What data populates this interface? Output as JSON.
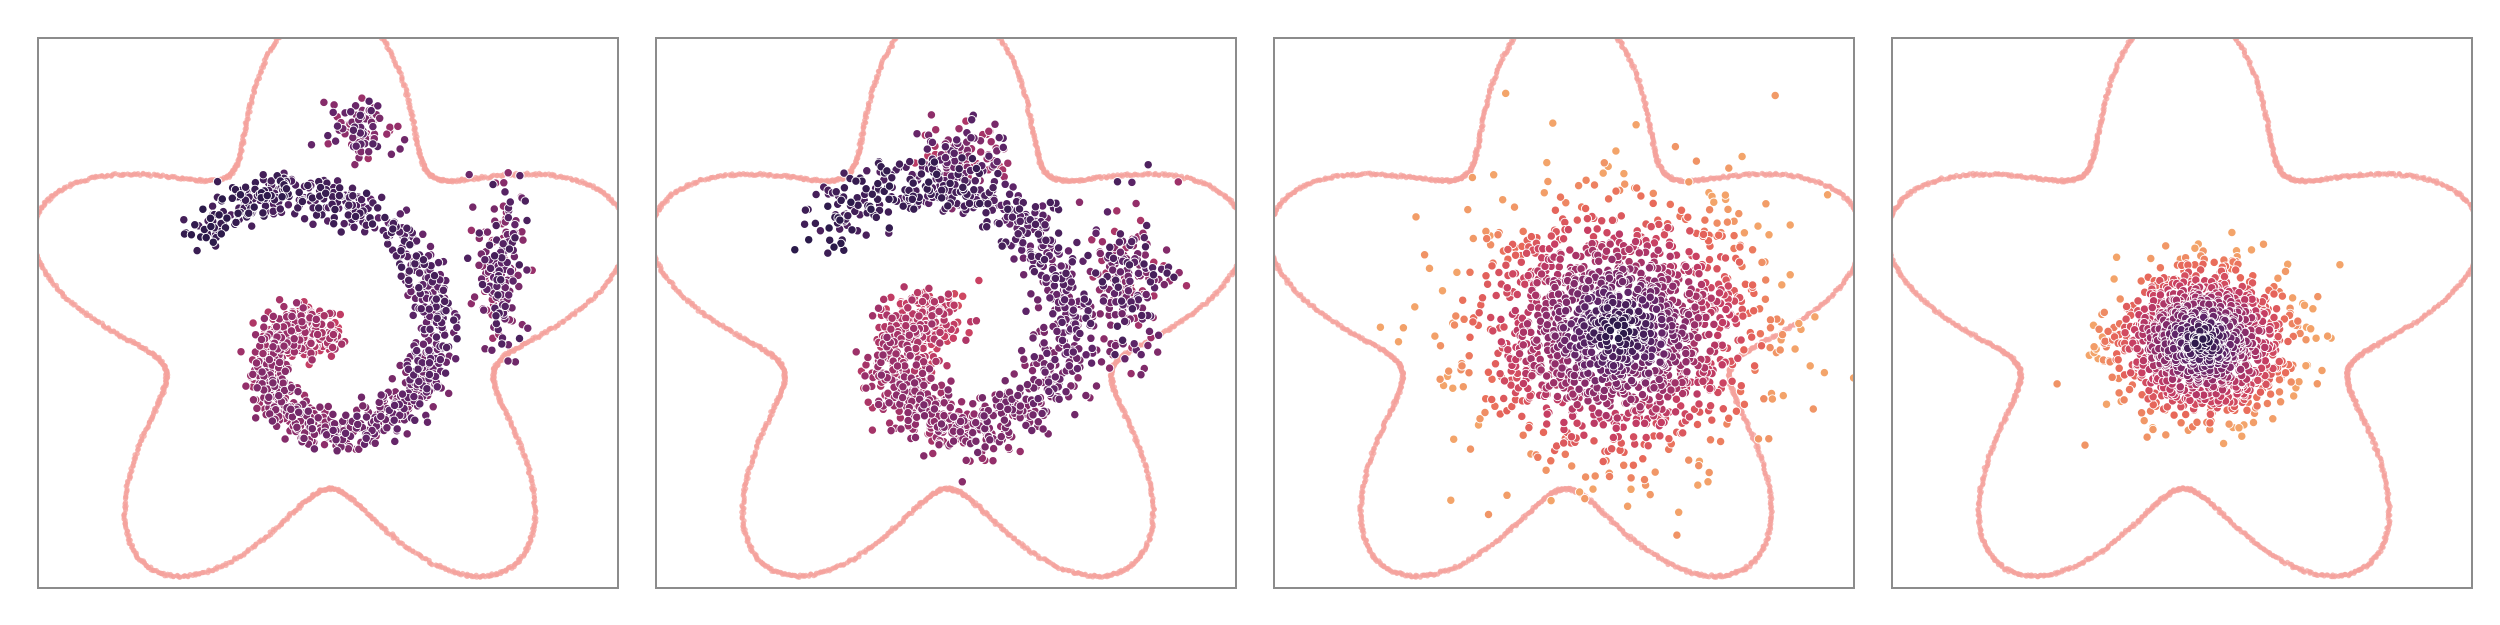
{
  "figure": {
    "panel_count": 4,
    "boundary_color": "#f4a29c",
    "palette": [
      "#f3a46a",
      "#e8685a",
      "#c73e63",
      "#962f6a",
      "#5f2569",
      "#2b1a4a"
    ],
    "dot_edge_color": "#ffffff"
  },
  "chart_data": [
    {
      "type": "scatter",
      "title": "",
      "xlabel": "",
      "ylabel": "",
      "xlim": [
        -4,
        4
      ],
      "ylim": [
        -4,
        4
      ],
      "grid": false,
      "boundary": {
        "shape": "five-petal star",
        "r0": 3.35,
        "amp": 0.95,
        "rotation_deg": 90
      },
      "clusters": [
        {
          "kind": "spiral",
          "center": [
            -0.15,
            -0.45
          ],
          "theta_range": [
            0.4,
            7.6
          ],
          "radius_range": [
            0.15,
            2.35
          ],
          "points": 1300,
          "spread": 0.15,
          "color_range": [
            0.45,
            0.95
          ]
        },
        {
          "kind": "blob",
          "center": [
            0.45,
            2.6
          ],
          "spread": [
            0.25,
            0.2
          ],
          "points": 90,
          "color_range": [
            0.55,
            0.85
          ]
        },
        {
          "kind": "blob",
          "center": [
            2.35,
            0.65
          ],
          "spread": [
            0.18,
            0.55
          ],
          "points": 180,
          "color_range": [
            0.55,
            0.9
          ]
        }
      ],
      "seed": 11
    },
    {
      "type": "scatter",
      "title": "",
      "xlabel": "",
      "ylabel": "",
      "xlim": [
        -4,
        4
      ],
      "ylim": [
        -4,
        4
      ],
      "grid": false,
      "boundary": {
        "shape": "five-petal star",
        "r0": 3.35,
        "amp": 0.95,
        "rotation_deg": 90
      },
      "clusters": [
        {
          "kind": "spiral",
          "center": [
            0.0,
            -0.35
          ],
          "theta_range": [
            0.9,
            7.6
          ],
          "radius_range": [
            0.3,
            2.4
          ],
          "points": 1300,
          "spread": 0.22,
          "color_range": [
            0.4,
            0.95
          ]
        },
        {
          "kind": "blob",
          "center": [
            0.2,
            2.25
          ],
          "spread": [
            0.32,
            0.25
          ],
          "points": 110,
          "color_range": [
            0.45,
            0.85
          ]
        },
        {
          "kind": "blob",
          "center": [
            2.5,
            0.4
          ],
          "spread": [
            0.28,
            0.55
          ],
          "points": 200,
          "color_range": [
            0.5,
            0.9
          ]
        }
      ],
      "seed": 23
    },
    {
      "type": "scatter",
      "title": "",
      "xlabel": "",
      "ylabel": "",
      "xlim": [
        -4,
        4
      ],
      "ylim": [
        -4,
        4
      ],
      "grid": false,
      "boundary": {
        "shape": "five-petal star",
        "r0": 3.35,
        "amp": 0.95,
        "rotation_deg": 90
      },
      "clusters": [
        {
          "kind": "gaussian",
          "center": [
            0.7,
            -0.2
          ],
          "spread": [
            0.95,
            0.85
          ],
          "points": 1700,
          "color_mode": "density"
        }
      ],
      "seed": 37
    },
    {
      "type": "scatter",
      "title": "",
      "xlabel": "",
      "ylabel": "",
      "xlim": [
        -4,
        4
      ],
      "ylim": [
        -4,
        4
      ],
      "grid": false,
      "boundary": {
        "shape": "five-petal star",
        "r0": 3.35,
        "amp": 0.95,
        "rotation_deg": 90
      },
      "clusters": [
        {
          "kind": "gaussian",
          "center": [
            0.25,
            -0.35
          ],
          "spread": [
            0.58,
            0.5
          ],
          "points": 1500,
          "color_mode": "density"
        }
      ],
      "seed": 53
    }
  ]
}
